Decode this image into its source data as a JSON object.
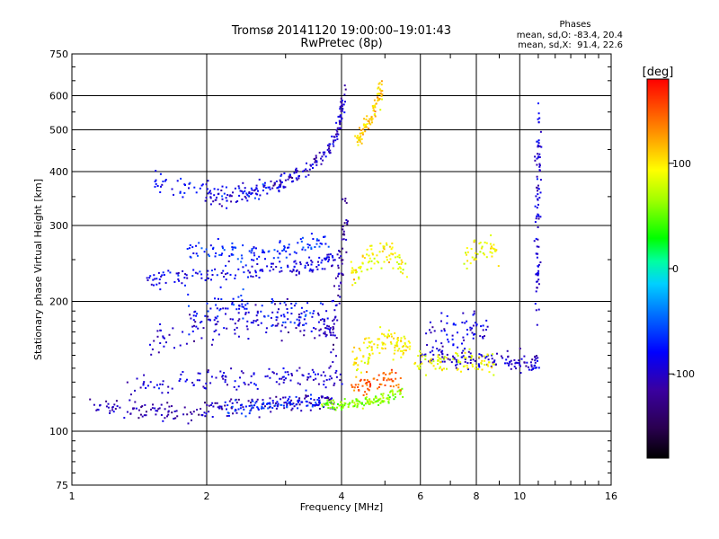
{
  "header": {
    "title_line1": "Tromsø 20141120 19:00:00–19:01:43",
    "title_line2": "RwPretec (8p)"
  },
  "stats": {
    "heading": "Phases",
    "line_o": "mean, sd,O: -83.4, 20.4",
    "line_x": "mean, sd,X:  91.4, 22.6"
  },
  "colorbar": {
    "label": "[deg]",
    "ticks": [
      "100",
      "0",
      "-100"
    ],
    "tick_values": [
      100,
      0,
      -100
    ],
    "range": [
      -180,
      180
    ]
  },
  "chart_data": {
    "type": "scatter",
    "title": "Tromsø 20141120 19:00:00–19:01:43",
    "subtitle": "RwPretec (8p)",
    "xlabel": "Frequency [MHz]",
    "ylabel": "Stationary phase Virtual Height [km]",
    "xscale": "log",
    "yscale": "log",
    "xlim": [
      1,
      16
    ],
    "ylim": [
      75,
      750
    ],
    "xticks": [
      1,
      2,
      4,
      6,
      8,
      10,
      16
    ],
    "xtick_labels": [
      "1",
      "2",
      "4",
      "6",
      "8",
      "10",
      "16"
    ],
    "yticks": [
      75,
      100,
      200,
      300,
      400,
      500,
      600,
      750
    ],
    "ytick_labels": [
      "75",
      "100",
      "200",
      "300",
      "400",
      "500",
      "600",
      "750"
    ],
    "grid": true,
    "colorscale": "rainbow phase, -180 (black/violet) to 180 (red)",
    "point_groups": [
      {
        "note": "O-mode E layer trace",
        "x": [
          1.1,
          1.3,
          1.5,
          1.7,
          2.0,
          2.3,
          2.7,
          3.1,
          3.5,
          3.9
        ],
        "y": [
          115,
          113,
          111,
          110,
          112,
          114,
          115,
          116,
          117,
          118
        ],
        "phase": -110,
        "spread": 0.035
      },
      {
        "note": "E trace turning (cyan)",
        "x": [
          2.2,
          2.5,
          2.8,
          3.2,
          3.6
        ],
        "y": [
          113,
          114,
          115,
          116,
          117
        ],
        "phase": -70,
        "spread": 0.03
      },
      {
        "note": "X-mode low trace (green/yellow)",
        "x": [
          3.6,
          3.9,
          4.2,
          4.5,
          4.8,
          5.1,
          5.5
        ],
        "y": [
          115,
          115,
          116,
          117,
          118,
          120,
          124
        ],
        "phase": 60,
        "spread": 0.02
      },
      {
        "note": "Es layer ~130 km",
        "x": [
          1.3,
          1.7,
          2.1,
          2.5,
          3.0,
          3.5,
          4.0
        ],
        "y": [
          128,
          130,
          131,
          132,
          133,
          133,
          134
        ],
        "phase": -95,
        "spread": 0.04
      },
      {
        "note": "Lower F cluster ~170 km",
        "x": [
          1.5,
          1.8,
          2.1,
          2.4,
          2.8,
          3.2,
          3.6,
          3.9
        ],
        "y": [
          165,
          170,
          178,
          182,
          185,
          180,
          175,
          172
        ],
        "phase": -100,
        "spread": 0.07
      },
      {
        "note": "Lower F cyan",
        "x": [
          1.8,
          2.2,
          2.7,
          3.2,
          3.7
        ],
        "y": [
          190,
          195,
          190,
          185,
          180
        ],
        "phase": -75,
        "spread": 0.07
      },
      {
        "note": "F1 band ~230 km",
        "x": [
          1.45,
          1.7,
          2.0,
          2.4,
          2.8,
          3.2,
          3.6,
          3.9
        ],
        "y": [
          224,
          228,
          232,
          235,
          238,
          240,
          245,
          250
        ],
        "phase": -90,
        "spread": 0.035
      },
      {
        "note": "F1 upper ~265 km",
        "x": [
          1.8,
          2.1,
          2.5,
          2.9,
          3.3,
          3.7
        ],
        "y": [
          265,
          262,
          260,
          263,
          268,
          280
        ],
        "phase": -70,
        "spread": 0.04
      },
      {
        "note": "F2 O-trace rising",
        "x": [
          2.0,
          2.3,
          2.7,
          3.1,
          3.4,
          3.7,
          3.9,
          4.0,
          4.05
        ],
        "y": [
          345,
          350,
          365,
          385,
          410,
          440,
          480,
          540,
          610
        ],
        "phase": -100,
        "spread": 0.03
      },
      {
        "note": "F2 O cyan upper",
        "x": [
          1.5,
          1.8,
          2.2,
          2.6,
          3.0
        ],
        "y": [
          380,
          365,
          355,
          360,
          375
        ],
        "phase": -80,
        "spread": 0.04
      },
      {
        "note": "Near-critical spread (blue)",
        "x": [
          3.8,
          3.9,
          4.0,
          4.1
        ],
        "y": [
          150,
          200,
          260,
          320
        ],
        "phase": -110,
        "spread": 0.1
      },
      {
        "note": "X-mode ~150 km (yellow)",
        "x": [
          4.2,
          4.5,
          4.8,
          5.1,
          5.4,
          5.7
        ],
        "y": [
          140,
          150,
          160,
          165,
          160,
          150
        ],
        "phase": 100,
        "spread": 0.06
      },
      {
        "note": "X-mode ~250 km (yellow)",
        "x": [
          4.2,
          4.5,
          4.8,
          5.2,
          5.6
        ],
        "y": [
          230,
          245,
          260,
          255,
          240
        ],
        "phase": 95,
        "spread": 0.06
      },
      {
        "note": "F2 X-trace rising (yellow)",
        "x": [
          4.3,
          4.5,
          4.7,
          4.85,
          4.9
        ],
        "y": [
          470,
          500,
          540,
          590,
          640
        ],
        "phase": 110,
        "spread": 0.025
      },
      {
        "note": "X-mode red/orange",
        "x": [
          4.2,
          4.6,
          5.0,
          5.5
        ],
        "y": [
          125,
          130,
          135,
          128
        ],
        "phase": 150,
        "spread": 0.04
      },
      {
        "note": "Blue tail 6-11 MHz",
        "x": [
          6.0,
          6.8,
          7.6,
          8.5,
          9.5,
          10.5,
          11.0
        ],
        "y": [
          150,
          148,
          147,
          146,
          145,
          144,
          144
        ],
        "phase": -100,
        "spread": 0.04
      },
      {
        "note": "Yellow tail 6-9 MHz",
        "x": [
          5.8,
          6.5,
          7.2,
          8.0,
          8.8
        ],
        "y": [
          145,
          145,
          146,
          145,
          144
        ],
        "phase": 90,
        "spread": 0.04
      },
      {
        "note": "Scatter 6-9 MHz ~170 km",
        "x": [
          6.2,
          7.0,
          7.8,
          8.5
        ],
        "y": [
          165,
          170,
          175,
          168
        ],
        "phase": -90,
        "spread": 0.08
      },
      {
        "note": "Vertical streak ~11 MHz",
        "x": [
          10.9,
          11.0,
          11.0,
          11.0,
          11.1
        ],
        "y": [
          200,
          260,
          330,
          420,
          520
        ],
        "phase": -95,
        "spread": 0.12
      },
      {
        "note": "Sparse 8-9 MHz ~260 km",
        "x": [
          7.5,
          8.2,
          9.0
        ],
        "y": [
          255,
          265,
          260
        ],
        "phase": 95,
        "spread": 0.06
      }
    ]
  }
}
